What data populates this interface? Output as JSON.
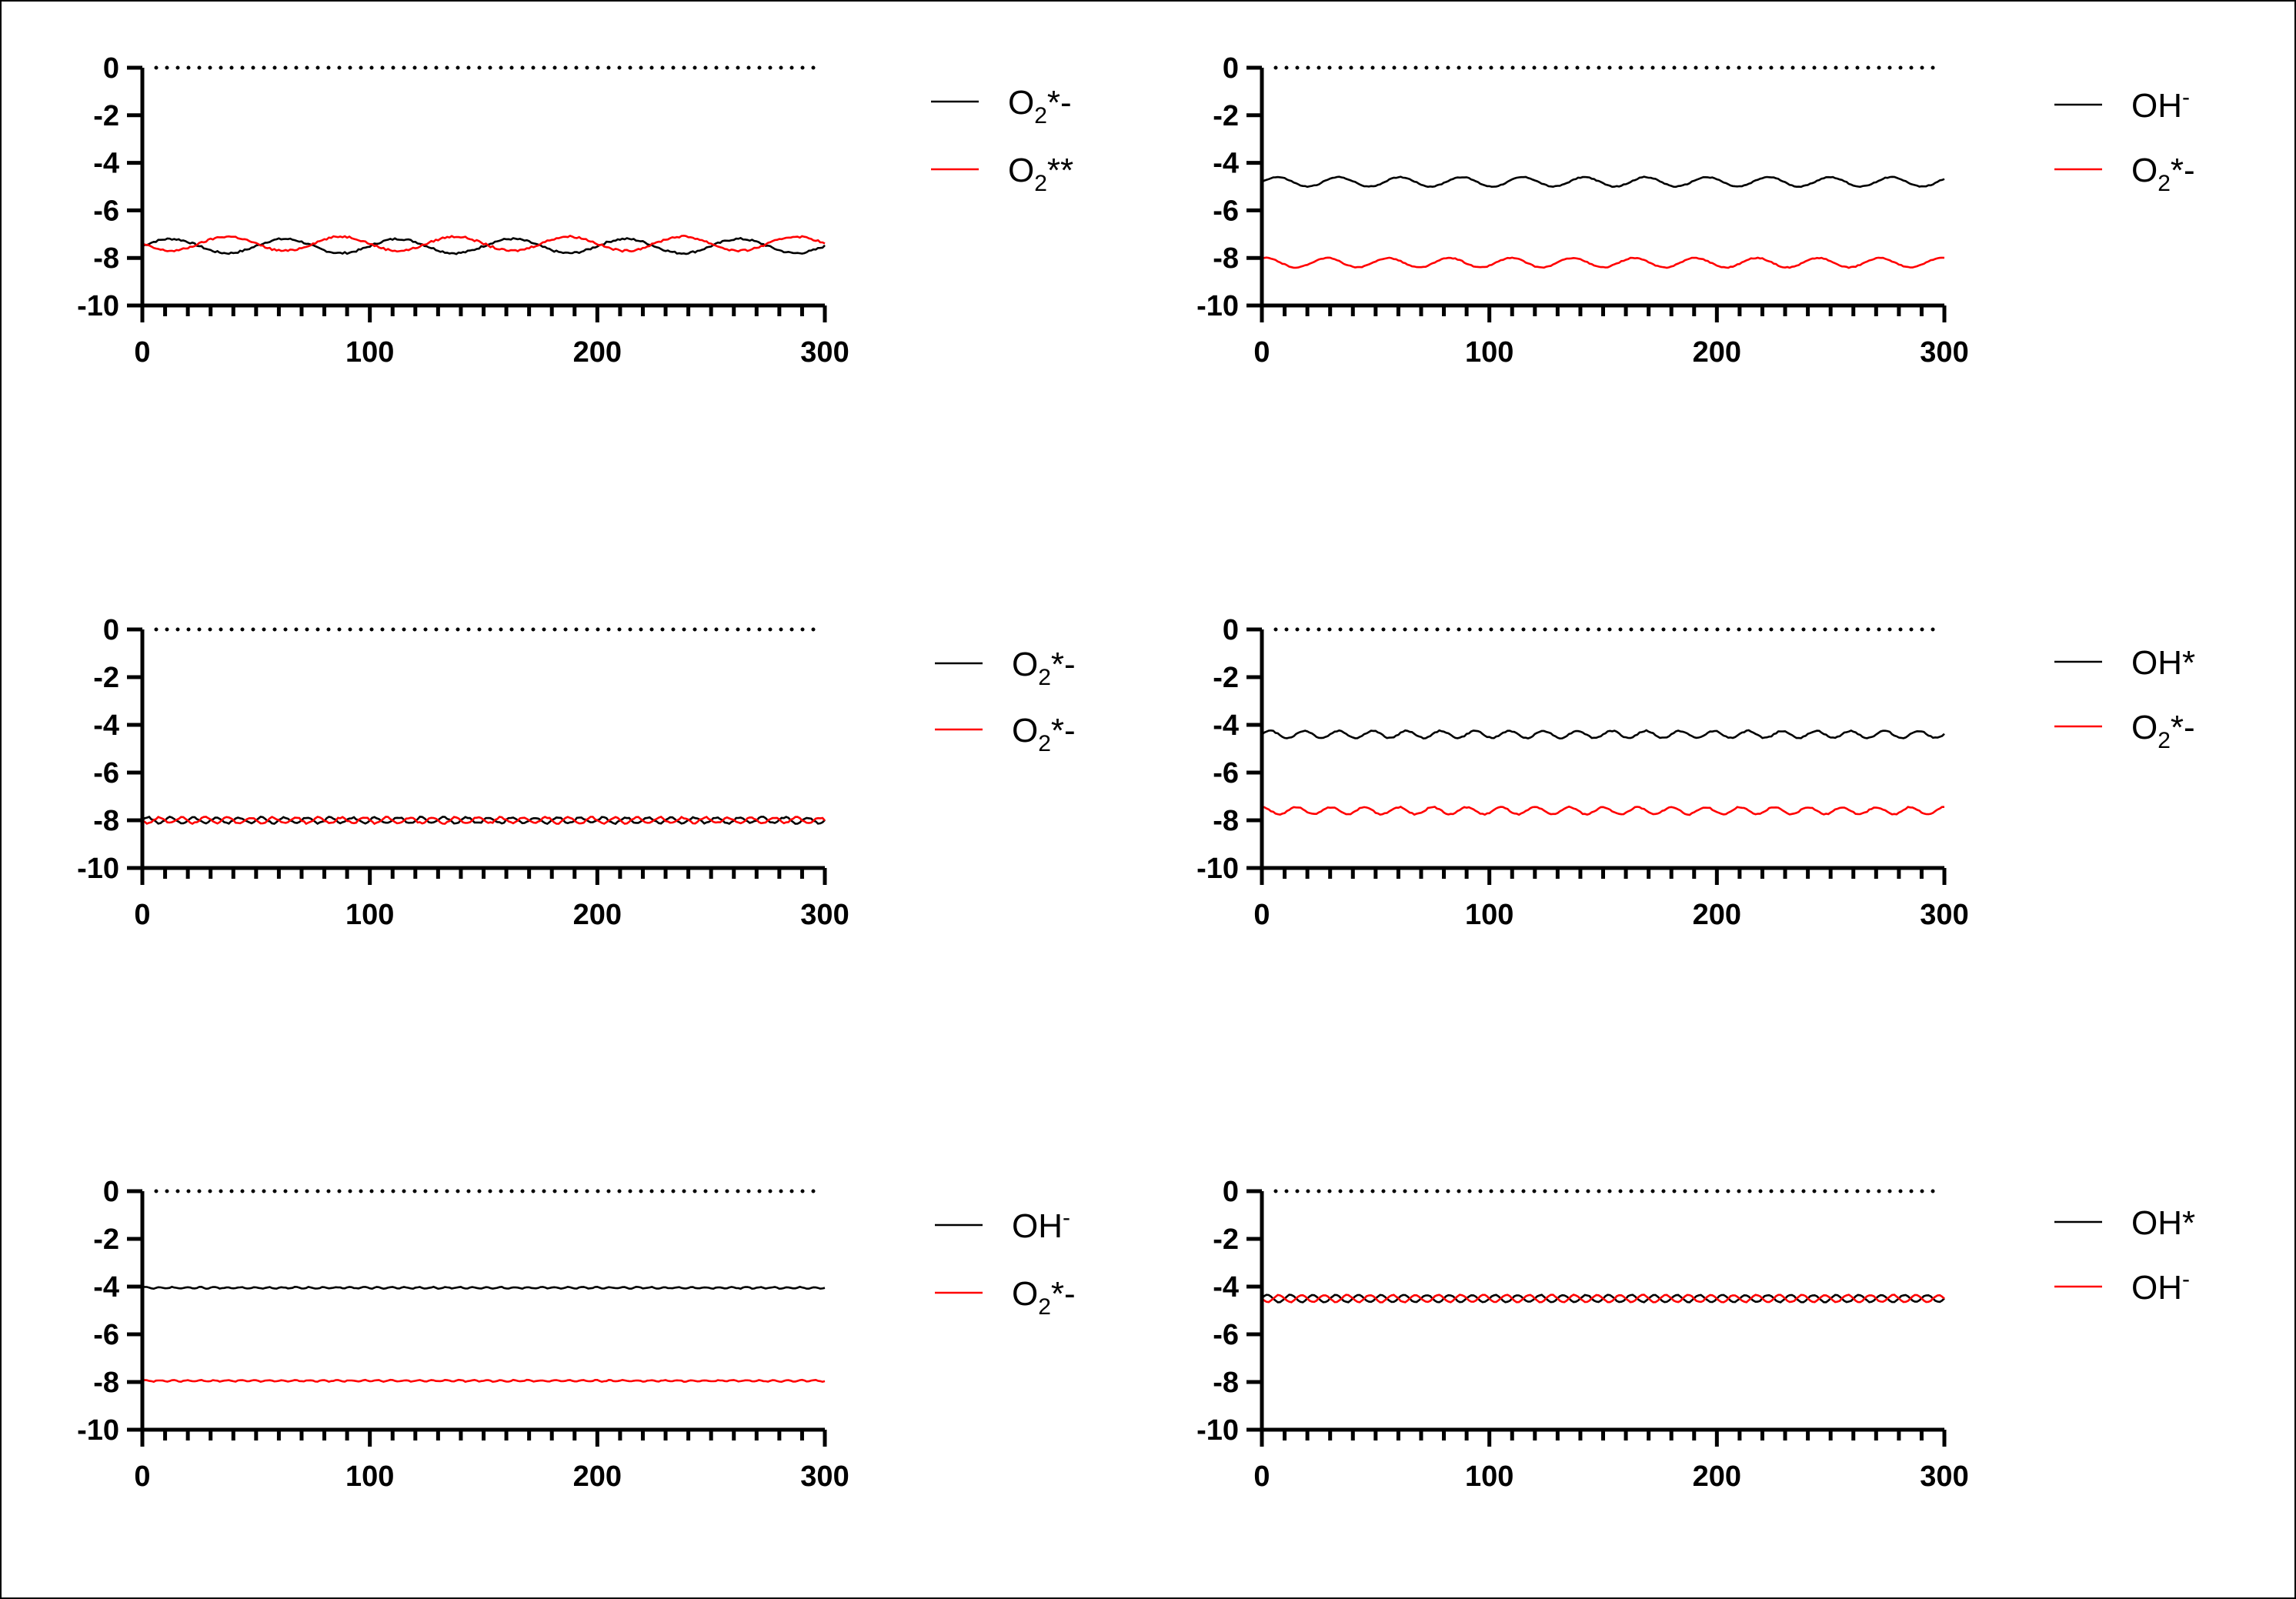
{
  "colors": {
    "series_a": "#000000",
    "series_b": "#ff0000",
    "reference_line": "#000000"
  },
  "chart_data": [
    {
      "type": "line",
      "xlim": [
        0,
        300
      ],
      "ylim": [
        -10,
        0
      ],
      "x_ticks": [
        0,
        100,
        200,
        300
      ],
      "y_ticks": [
        0,
        -2,
        -4,
        -6,
        -8,
        -10
      ],
      "x_tick_labels": [
        "0",
        "100",
        "200",
        "300"
      ],
      "y_tick_labels": [
        "0",
        "-2",
        "-4",
        "-6",
        "-8",
        "-10"
      ],
      "reference_line": {
        "y": 0,
        "style": "dotted"
      },
      "legend": "right",
      "series": [
        {
          "name": "O2*-",
          "color": "#000000",
          "baseline": -7.5,
          "amplitude": 0.3,
          "period": 50,
          "noise": 0.08
        },
        {
          "name": "O2**",
          "color": "#ff0000",
          "baseline": -7.4,
          "amplitude": 0.3,
          "period": 50,
          "phase": 3.14,
          "noise": 0.08
        }
      ],
      "legend_labels": [
        {
          "base": "O",
          "sub": "2",
          "suffix": "*-"
        },
        {
          "base": "O",
          "sub": "2",
          "suffix": "**"
        }
      ]
    },
    {
      "type": "line",
      "xlim": [
        0,
        300
      ],
      "ylim": [
        -10,
        0
      ],
      "x_ticks": [
        0,
        100,
        200,
        300
      ],
      "y_ticks": [
        0,
        -2,
        -4,
        -6,
        -8,
        -10
      ],
      "x_tick_labels": [
        "0",
        "100",
        "200",
        "300"
      ],
      "y_tick_labels": [
        "0",
        "-2",
        "-4",
        "-6",
        "-8",
        "-10"
      ],
      "reference_line": {
        "y": 0,
        "style": "dotted"
      },
      "legend": "right",
      "series": [
        {
          "name": "OH-",
          "color": "#000000",
          "baseline": -4.8,
          "amplitude": 0.2,
          "period": 27,
          "noise": 0.04
        },
        {
          "name": "O2*-",
          "color": "#ff0000",
          "baseline": -8.2,
          "amplitude": 0.2,
          "period": 27,
          "phase": 1.2,
          "noise": 0.04
        }
      ],
      "legend_labels": [
        {
          "base": "OH",
          "sup": "-"
        },
        {
          "base": "O",
          "sub": "2",
          "suffix": "*-"
        }
      ]
    },
    {
      "type": "line",
      "xlim": [
        0,
        300
      ],
      "ylim": [
        -10,
        0
      ],
      "x_ticks": [
        0,
        100,
        200,
        300
      ],
      "y_ticks": [
        0,
        -2,
        -4,
        -6,
        -8,
        -10
      ],
      "x_tick_labels": [
        "0",
        "100",
        "200",
        "300"
      ],
      "y_tick_labels": [
        "0",
        "-2",
        "-4",
        "-6",
        "-8",
        "-10"
      ],
      "reference_line": {
        "y": 0,
        "style": "dotted"
      },
      "legend": "right",
      "series": [
        {
          "name": "O2*-",
          "color": "#000000",
          "baseline": -8.0,
          "amplitude": 0.12,
          "period": 10,
          "noise": 0.07
        },
        {
          "name": "O2*-",
          "color": "#ff0000",
          "baseline": -8.0,
          "amplitude": 0.12,
          "period": 10,
          "phase": 3.14,
          "noise": 0.07
        }
      ],
      "legend_labels": [
        {
          "base": "O",
          "sub": "2",
          "suffix": "*-"
        },
        {
          "base": "O",
          "sub": "2",
          "suffix": "*-"
        }
      ]
    },
    {
      "type": "line",
      "xlim": [
        0,
        300
      ],
      "ylim": [
        -10,
        0
      ],
      "x_ticks": [
        0,
        100,
        200,
        300
      ],
      "y_ticks": [
        0,
        -2,
        -4,
        -6,
        -8,
        -10
      ],
      "x_tick_labels": [
        "0",
        "100",
        "200",
        "300"
      ],
      "y_tick_labels": [
        "0",
        "-2",
        "-4",
        "-6",
        "-8",
        "-10"
      ],
      "reference_line": {
        "y": 0,
        "style": "dotted"
      },
      "legend": "right",
      "series": [
        {
          "name": "OH*",
          "color": "#000000",
          "baseline": -4.4,
          "amplitude": 0.15,
          "period": 15,
          "noise": 0.05
        },
        {
          "name": "O2*-",
          "color": "#ff0000",
          "baseline": -7.6,
          "amplitude": 0.15,
          "period": 15,
          "phase": 1.5,
          "noise": 0.05
        }
      ],
      "legend_labels": [
        {
          "base": "OH",
          "suffix": "*"
        },
        {
          "base": "O",
          "sub": "2",
          "suffix": "*-"
        }
      ]
    },
    {
      "type": "line",
      "xlim": [
        0,
        300
      ],
      "ylim": [
        -10,
        0
      ],
      "x_ticks": [
        0,
        100,
        200,
        300
      ],
      "y_ticks": [
        0,
        -2,
        -4,
        -6,
        -8,
        -10
      ],
      "x_tick_labels": [
        "0",
        "100",
        "200",
        "300"
      ],
      "y_tick_labels": [
        "0",
        "-2",
        "-4",
        "-6",
        "-8",
        "-10"
      ],
      "reference_line": {
        "y": 0,
        "style": "dotted"
      },
      "legend": "right",
      "series": [
        {
          "name": "OH-",
          "color": "#000000",
          "baseline": -4.05,
          "amplitude": 0.03,
          "period": 6,
          "noise": 0.03
        },
        {
          "name": "O2*-",
          "color": "#ff0000",
          "baseline": -7.95,
          "amplitude": 0.03,
          "period": 6,
          "noise": 0.03
        }
      ],
      "legend_labels": [
        {
          "base": "OH",
          "sup": "-"
        },
        {
          "base": "O",
          "sub": "2",
          "suffix": "*-"
        }
      ]
    },
    {
      "type": "line",
      "xlim": [
        0,
        300
      ],
      "ylim": [
        -10,
        0
      ],
      "x_ticks": [
        0,
        100,
        200,
        300
      ],
      "y_ticks": [
        0,
        -2,
        -4,
        -6,
        -8,
        -10
      ],
      "x_tick_labels": [
        "0",
        "100",
        "200",
        "300"
      ],
      "y_tick_labels": [
        "0",
        "-2",
        "-4",
        "-6",
        "-8",
        "-10"
      ],
      "reference_line": {
        "y": 0,
        "style": "dotted"
      },
      "legend": "right",
      "series": [
        {
          "name": "OH*",
          "color": "#000000",
          "baseline": -4.5,
          "amplitude": 0.15,
          "period": 10,
          "noise": 0.03
        },
        {
          "name": "OH-",
          "color": "#ff0000",
          "baseline": -4.5,
          "amplitude": 0.15,
          "period": 10,
          "phase": 3.14,
          "noise": 0.03
        }
      ],
      "legend_labels": [
        {
          "base": "OH",
          "suffix": "*"
        },
        {
          "base": "OH",
          "sup": "-"
        }
      ]
    }
  ]
}
